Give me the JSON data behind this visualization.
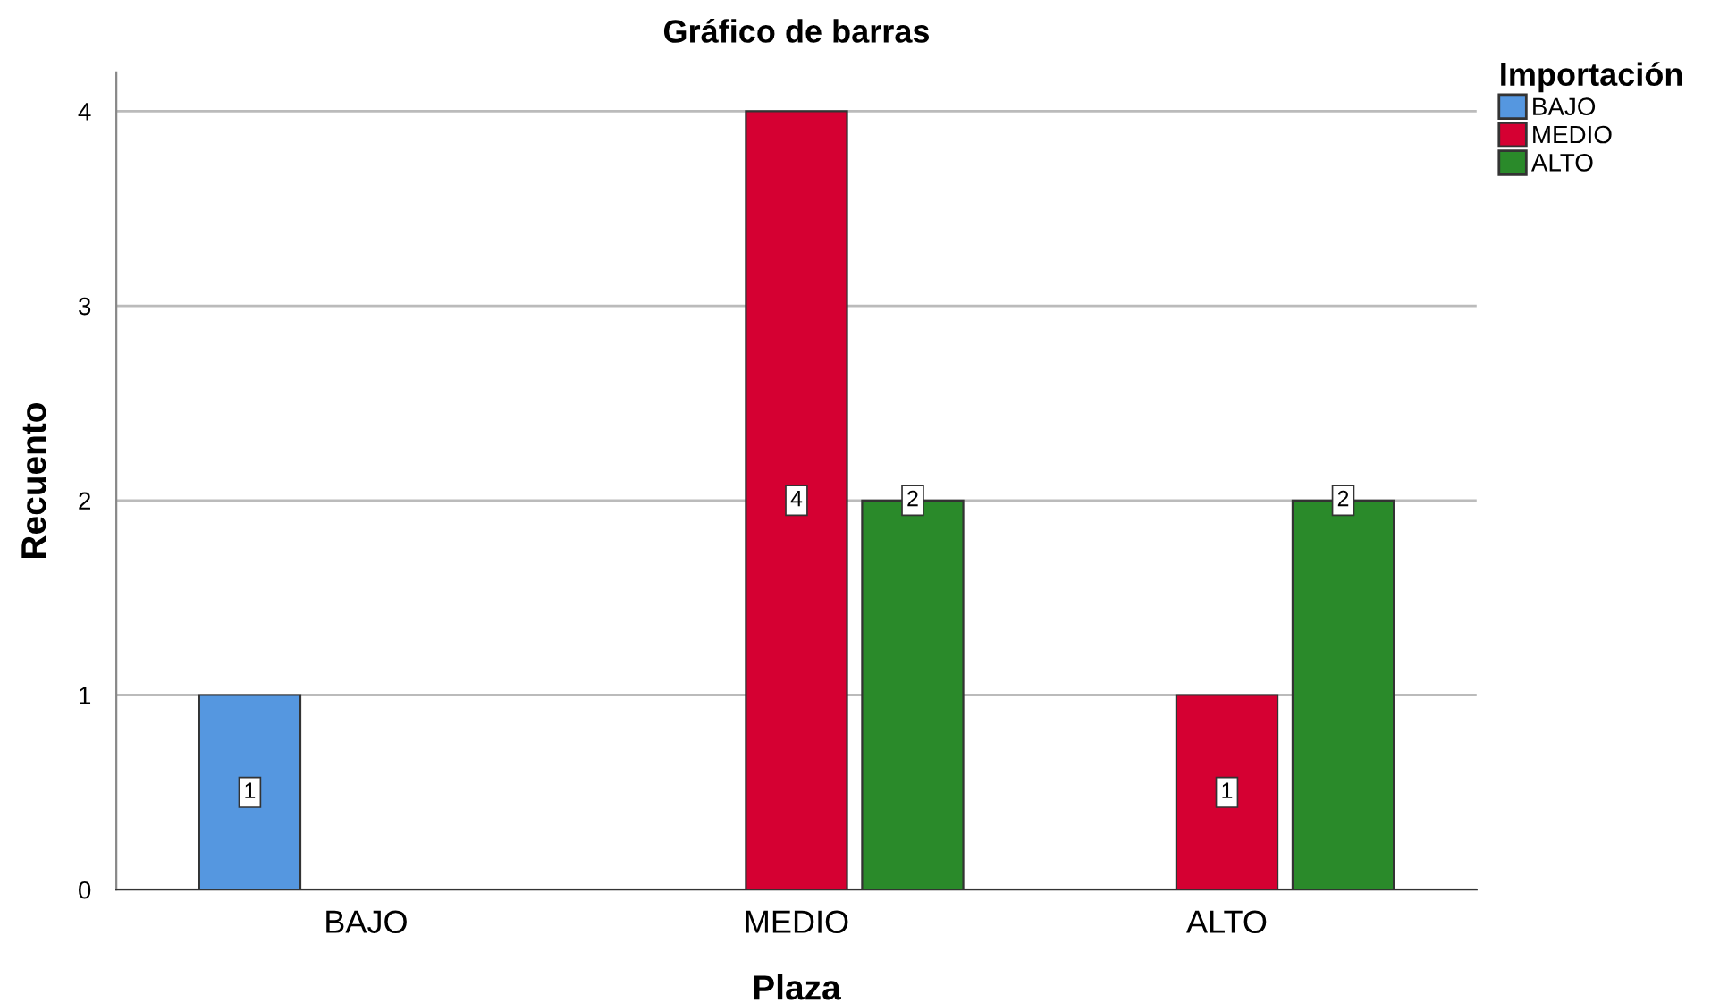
{
  "chart_data": {
    "type": "bar",
    "title": "Gráfico de barras",
    "xlabel": "Plaza",
    "ylabel": "Recuento",
    "legend_title": "Importación",
    "categories": [
      "BAJO",
      "MEDIO",
      "ALTO"
    ],
    "series": [
      {
        "name": "BAJO",
        "color": "#5597e0",
        "values": [
          1,
          null,
          null
        ]
      },
      {
        "name": "MEDIO",
        "color": "#d50032",
        "values": [
          null,
          4,
          1
        ]
      },
      {
        "name": "ALTO",
        "color": "#2a8a2a",
        "values": [
          null,
          2,
          2
        ]
      }
    ],
    "ylim": [
      0,
      4.2
    ],
    "yticks": [
      0,
      1,
      2,
      3,
      4
    ],
    "grid": "y",
    "legend": "top right",
    "data_labels": true
  }
}
